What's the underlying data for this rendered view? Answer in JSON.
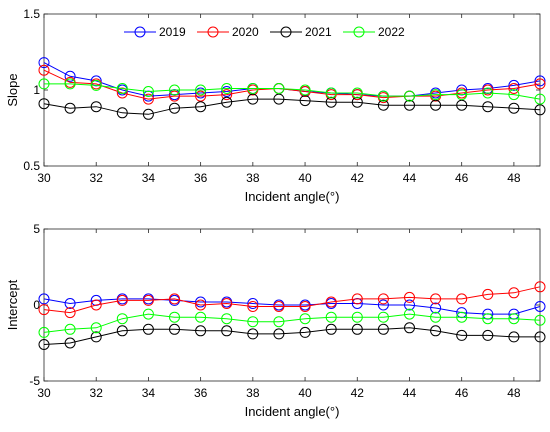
{
  "chart_data": [
    {
      "type": "line",
      "xlabel": "Incident angle(°)",
      "ylabel": "Slope",
      "xlim": [
        30,
        49
      ],
      "ylim": [
        0.5,
        1.5
      ],
      "xticks": [
        30,
        32,
        34,
        36,
        38,
        40,
        42,
        44,
        46,
        48
      ],
      "yticks": [
        0.5,
        1,
        1.5
      ],
      "ytick_labels": [
        "0.5",
        "1",
        "1.5"
      ],
      "legend": "top-center",
      "x": [
        30,
        31,
        32,
        33,
        34,
        35,
        36,
        37,
        38,
        39,
        40,
        41,
        42,
        43,
        44,
        45,
        46,
        47,
        48,
        49
      ],
      "series": [
        {
          "name": "2019",
          "color": "#0000ff",
          "values": [
            1.18,
            1.09,
            1.06,
            1.0,
            0.96,
            0.97,
            0.98,
            0.99,
            1.01,
            1.01,
            0.99,
            0.98,
            0.97,
            0.96,
            0.96,
            0.98,
            1.0,
            1.01,
            1.03,
            1.06
          ]
        },
        {
          "name": "2020",
          "color": "#ff0000",
          "values": [
            1.13,
            1.05,
            1.04,
            0.98,
            0.94,
            0.96,
            0.96,
            0.97,
            1.0,
            1.01,
            0.99,
            0.97,
            0.97,
            0.95,
            0.96,
            0.96,
            0.98,
            1.0,
            1.01,
            1.04
          ]
        },
        {
          "name": "2021",
          "color": "#000000",
          "values": [
            0.91,
            0.88,
            0.89,
            0.85,
            0.84,
            0.88,
            0.89,
            0.92,
            0.94,
            0.94,
            0.93,
            0.92,
            0.92,
            0.9,
            0.9,
            0.9,
            0.9,
            0.89,
            0.88,
            0.87
          ]
        },
        {
          "name": "2022",
          "color": "#00ff00",
          "values": [
            1.04,
            1.04,
            1.03,
            1.01,
            0.99,
            1.0,
            1.0,
            1.01,
            1.01,
            1.01,
            1.0,
            0.98,
            0.98,
            0.96,
            0.96,
            0.97,
            0.97,
            0.98,
            0.97,
            0.94
          ]
        }
      ]
    },
    {
      "type": "line",
      "xlabel": "Incident angle(°)",
      "ylabel": "Intercept",
      "xlim": [
        30,
        49
      ],
      "ylim": [
        -5,
        5
      ],
      "xticks": [
        30,
        32,
        34,
        36,
        38,
        40,
        42,
        44,
        46,
        48
      ],
      "yticks": [
        -5,
        0,
        5
      ],
      "ytick_labels": [
        "-5",
        "0",
        "5"
      ],
      "x": [
        30,
        31,
        32,
        33,
        34,
        35,
        36,
        37,
        38,
        39,
        40,
        41,
        42,
        43,
        44,
        45,
        46,
        47,
        48,
        49
      ],
      "series": [
        {
          "name": "2019",
          "color": "#0000ff",
          "values": [
            0.4,
            0.1,
            0.3,
            0.4,
            0.4,
            0.3,
            0.2,
            0.2,
            0.1,
            0.0,
            0.0,
            0.1,
            0.1,
            0.0,
            0.0,
            -0.2,
            -0.5,
            -0.6,
            -0.6,
            -0.1
          ]
        },
        {
          "name": "2020",
          "color": "#ff0000",
          "values": [
            -0.3,
            -0.5,
            0.0,
            0.3,
            0.3,
            0.4,
            0.0,
            0.1,
            -0.1,
            -0.1,
            -0.1,
            0.2,
            0.4,
            0.4,
            0.5,
            0.4,
            0.4,
            0.7,
            0.8,
            1.2
          ]
        },
        {
          "name": "2021",
          "color": "#000000",
          "values": [
            -2.6,
            -2.5,
            -2.1,
            -1.7,
            -1.6,
            -1.6,
            -1.7,
            -1.7,
            -1.9,
            -1.9,
            -1.8,
            -1.6,
            -1.6,
            -1.6,
            -1.5,
            -1.7,
            -2.0,
            -2.0,
            -2.1,
            -2.1
          ]
        },
        {
          "name": "2022",
          "color": "#00ff00",
          "values": [
            -1.8,
            -1.6,
            -1.5,
            -0.9,
            -0.6,
            -0.8,
            -0.8,
            -0.9,
            -1.1,
            -1.1,
            -0.9,
            -0.8,
            -0.8,
            -0.8,
            -0.6,
            -0.8,
            -0.8,
            -0.9,
            -0.9,
            -1.0
          ]
        }
      ]
    }
  ]
}
